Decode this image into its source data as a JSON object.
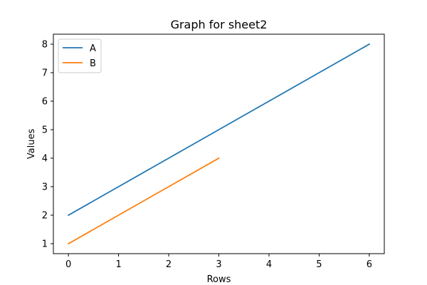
{
  "chart_data": {
    "type": "line",
    "title": "Graph for sheet2",
    "xlabel": "Rows",
    "ylabel": "Values",
    "xlim": [
      -0.3,
      6.3
    ],
    "ylim": [
      0.65,
      8.35
    ],
    "xticks": [
      "0",
      "1",
      "2",
      "3",
      "4",
      "5",
      "6"
    ],
    "yticks": [
      "1",
      "2",
      "3",
      "4",
      "5",
      "6",
      "7",
      "8"
    ],
    "grid": false,
    "legend_position": "top-left",
    "series": [
      {
        "name": "A",
        "color": "#1f77b4",
        "x": [
          0,
          1,
          2,
          3,
          4,
          5,
          6
        ],
        "y": [
          2,
          3,
          4,
          5,
          6,
          7,
          8
        ]
      },
      {
        "name": "B",
        "color": "#ff7f0e",
        "x": [
          0,
          1,
          2,
          3
        ],
        "y": [
          1,
          2,
          3,
          4
        ]
      }
    ]
  }
}
